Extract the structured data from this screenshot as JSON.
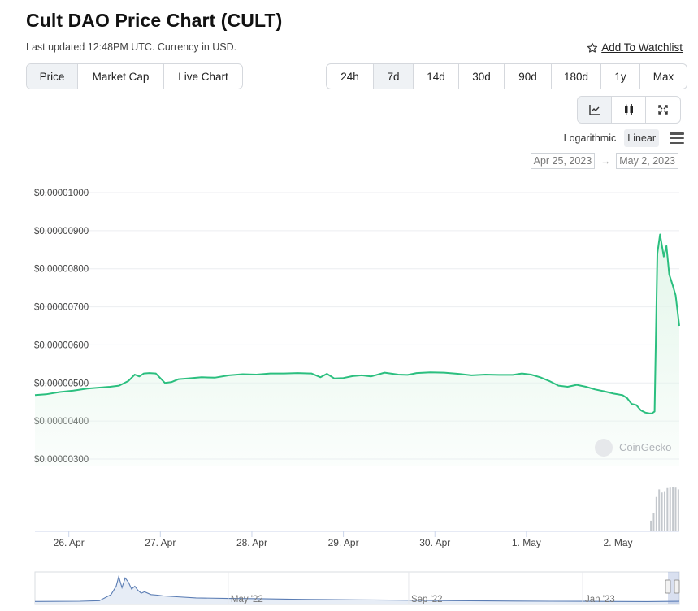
{
  "header": {
    "title": "Cult DAO Price Chart (CULT)",
    "subtitle": "Last updated 12:48PM UTC. Currency in USD.",
    "watchlist_label": "Add To Watchlist",
    "watchlist_icon": "star-outline-icon"
  },
  "type_tabs": [
    {
      "label": "Price",
      "active": true
    },
    {
      "label": "Market Cap",
      "active": false
    },
    {
      "label": "Live Chart",
      "active": false
    }
  ],
  "range_tabs": [
    {
      "label": "24h",
      "active": false
    },
    {
      "label": "7d",
      "active": true
    },
    {
      "label": "14d",
      "active": false
    },
    {
      "label": "30d",
      "active": false
    },
    {
      "label": "90d",
      "active": false
    },
    {
      "label": "180d",
      "active": false
    },
    {
      "label": "1y",
      "active": false
    },
    {
      "label": "Max",
      "active": false
    }
  ],
  "view_buttons": [
    {
      "icon": "line-chart-icon",
      "active": true
    },
    {
      "icon": "candlestick-icon",
      "active": false
    },
    {
      "icon": "fullscreen-icon",
      "active": false
    }
  ],
  "scale": {
    "logarithmic_label": "Logarithmic",
    "linear_label": "Linear",
    "active": "Linear",
    "menu_icon": "hamburger-menu-icon"
  },
  "date_range": {
    "from": "Apr 25, 2023",
    "arrow": "→",
    "to": "May 2, 2023"
  },
  "watermark": "CoinGecko",
  "colors": {
    "line": "#2bbf7f",
    "fill": "#e3f6ea",
    "volume": "#c4c8cd",
    "nav_line": "#5b7db4",
    "nav_fill": "#e7edf6"
  },
  "chart_data": {
    "type": "area",
    "title": "",
    "xlabel": "",
    "ylabel": "",
    "ylim": [
      2.8e-06,
      1.02e-05
    ],
    "y_ticks": [
      1e-05,
      9e-06,
      8e-06,
      7e-06,
      6e-06,
      5e-06,
      4e-06,
      3e-06
    ],
    "y_tick_labels": [
      "$0.00001000",
      "$0.00000900",
      "$0.00000800",
      "$0.00000700",
      "$0.00000600",
      "$0.00000500",
      "$0.00000400",
      "$0.00000300"
    ],
    "xlim": [
      -0.37,
      6.67
    ],
    "x_ticks": [
      0,
      1,
      2,
      3,
      4,
      5,
      6
    ],
    "x_tick_labels": [
      "26. Apr",
      "27. Apr",
      "28. Apr",
      "29. Apr",
      "30. Apr",
      "1. May",
      "2. May"
    ],
    "grid": true,
    "legend": "none",
    "series": [
      {
        "x": [
          -0.37,
          -0.25,
          -0.1,
          0.05,
          0.2,
          0.35,
          0.45,
          0.55,
          0.65,
          0.72,
          0.77,
          0.82,
          0.88,
          0.95,
          1.05,
          1.12,
          1.2,
          1.3,
          1.45,
          1.6,
          1.75,
          1.9,
          2.05,
          2.2,
          2.35,
          2.5,
          2.65,
          2.75,
          2.82,
          2.9,
          3.0,
          3.1,
          3.2,
          3.3,
          3.45,
          3.6,
          3.7,
          3.8,
          3.95,
          4.1,
          4.25,
          4.4,
          4.55,
          4.7,
          4.85,
          4.95,
          5.05,
          5.15,
          5.25,
          5.35,
          5.45,
          5.55,
          5.65,
          5.75,
          5.85,
          5.95,
          6.05,
          6.1,
          6.15,
          6.2,
          6.25,
          6.3,
          6.35,
          6.37,
          6.4,
          6.43,
          6.46,
          6.5,
          6.53,
          6.56,
          6.6,
          6.63,
          6.67
        ],
        "values": [
          4.68e-06,
          4.7e-06,
          4.76e-06,
          4.8e-06,
          4.85e-06,
          4.88e-06,
          4.9e-06,
          4.93e-06,
          5.05e-06,
          5.22e-06,
          5.17e-06,
          5.25e-06,
          5.26e-06,
          5.25e-06,
          5e-06,
          5.02e-06,
          5.1e-06,
          5.12e-06,
          5.15e-06,
          5.14e-06,
          5.2e-06,
          5.23e-06,
          5.22e-06,
          5.25e-06,
          5.25e-06,
          5.26e-06,
          5.25e-06,
          5.15e-06,
          5.24e-06,
          5.12e-06,
          5.13e-06,
          5.18e-06,
          5.2e-06,
          5.17e-06,
          5.27e-06,
          5.22e-06,
          5.21e-06,
          5.26e-06,
          5.28e-06,
          5.27e-06,
          5.24e-06,
          5.2e-06,
          5.22e-06,
          5.21e-06,
          5.21e-06,
          5.25e-06,
          5.22e-06,
          5.15e-06,
          5.05e-06,
          4.93e-06,
          4.9e-06,
          4.95e-06,
          4.9e-06,
          4.83e-06,
          4.78e-06,
          4.72e-06,
          4.68e-06,
          4.6e-06,
          4.45e-06,
          4.42e-06,
          4.28e-06,
          4.22e-06,
          4.2e-06,
          4.2e-06,
          4.25e-06,
          8.4e-06,
          8.9e-06,
          8.32e-06,
          8.6e-06,
          7.85e-06,
          7.55e-06,
          7.3e-06,
          6.5e-06
        ]
      }
    ],
    "volume_x": [
      6.36,
      6.39,
      6.42,
      6.45,
      6.48,
      6.51,
      6.54,
      6.57,
      6.6,
      6.63,
      6.66
    ],
    "volume_relative": [
      0.22,
      0.4,
      0.75,
      0.92,
      0.85,
      0.88,
      0.95,
      0.96,
      0.97,
      0.96,
      0.92
    ],
    "navigator": {
      "x_tick_labels": [
        "May '22",
        "Sep '22",
        "Jan '23"
      ],
      "x_ticks": [
        0.3,
        0.58,
        0.85
      ],
      "x": [
        0,
        0.07,
        0.1,
        0.118,
        0.126,
        0.13,
        0.135,
        0.14,
        0.145,
        0.15,
        0.155,
        0.16,
        0.165,
        0.17,
        0.18,
        0.19,
        0.2,
        0.22,
        0.25,
        0.3,
        0.35,
        0.4,
        0.45,
        0.5,
        0.55,
        0.6,
        0.65,
        0.7,
        0.75,
        0.8,
        0.85,
        0.9,
        0.95,
        1.0
      ],
      "values": [
        0.05,
        0.06,
        0.08,
        0.3,
        0.6,
        0.95,
        0.55,
        0.9,
        0.75,
        0.5,
        0.6,
        0.45,
        0.35,
        0.4,
        0.3,
        0.28,
        0.25,
        0.22,
        0.18,
        0.16,
        0.15,
        0.13,
        0.12,
        0.11,
        0.1,
        0.09,
        0.08,
        0.07,
        0.065,
        0.06,
        0.055,
        0.05,
        0.048,
        0.055
      ]
    }
  }
}
